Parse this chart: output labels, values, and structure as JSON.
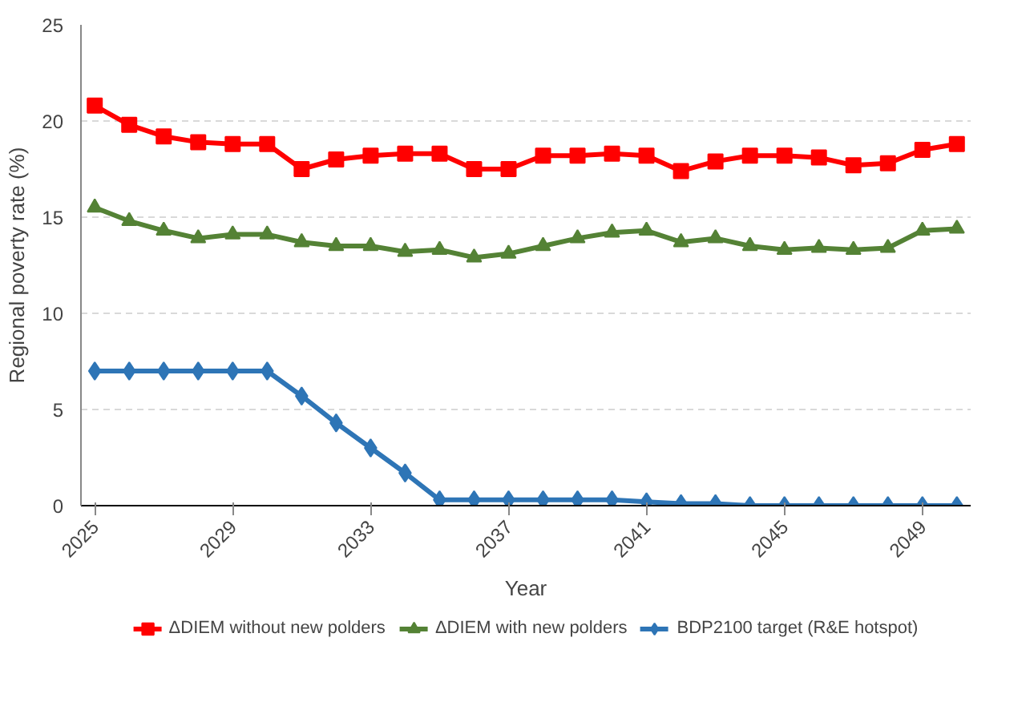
{
  "chart_data": {
    "type": "line",
    "xlabel": "Year",
    "ylabel": "Regional poverty rate (%)",
    "x": [
      2025,
      2026,
      2027,
      2028,
      2029,
      2030,
      2031,
      2032,
      2033,
      2034,
      2035,
      2036,
      2037,
      2038,
      2039,
      2040,
      2041,
      2042,
      2043,
      2044,
      2045,
      2046,
      2047,
      2048,
      2049,
      2050
    ],
    "xlim": [
      2024.6,
      2050.4
    ],
    "xticks": [
      2025,
      2029,
      2033,
      2037,
      2041,
      2045,
      2049
    ],
    "ylim": [
      0,
      25
    ],
    "yticks": [
      0,
      5,
      10,
      15,
      20,
      25
    ],
    "grid": "y",
    "legend": "bottom",
    "series": [
      {
        "name": "ΔDIEM without new polders",
        "color": "#ff0000",
        "marker": "square",
        "values": [
          20.8,
          19.8,
          19.2,
          18.9,
          18.8,
          18.8,
          17.5,
          18.0,
          18.2,
          18.3,
          18.3,
          17.5,
          17.5,
          18.2,
          18.2,
          18.3,
          18.2,
          17.4,
          17.9,
          18.2,
          18.2,
          18.1,
          17.7,
          17.8,
          18.5,
          18.8
        ]
      },
      {
        "name": "ΔDIEM with new polders",
        "color": "#548235",
        "marker": "triangle",
        "values": [
          15.5,
          14.8,
          14.3,
          13.9,
          14.1,
          14.1,
          13.7,
          13.5,
          13.5,
          13.2,
          13.3,
          12.9,
          13.1,
          13.5,
          13.9,
          14.2,
          14.3,
          13.7,
          13.9,
          13.5,
          13.3,
          13.4,
          13.3,
          13.4,
          14.3,
          14.4
        ]
      },
      {
        "name": "BDP2100 target (R&E hotspot)",
        "color": "#2e75b6",
        "marker": "diamond",
        "values": [
          7.0,
          7.0,
          7.0,
          7.0,
          7.0,
          7.0,
          5.7,
          4.3,
          3.0,
          1.7,
          0.3,
          0.3,
          0.3,
          0.3,
          0.3,
          0.3,
          0.2,
          0.1,
          0.1,
          0.0,
          0.0,
          0.0,
          0.0,
          0.0,
          0.0,
          0.0
        ]
      }
    ]
  }
}
